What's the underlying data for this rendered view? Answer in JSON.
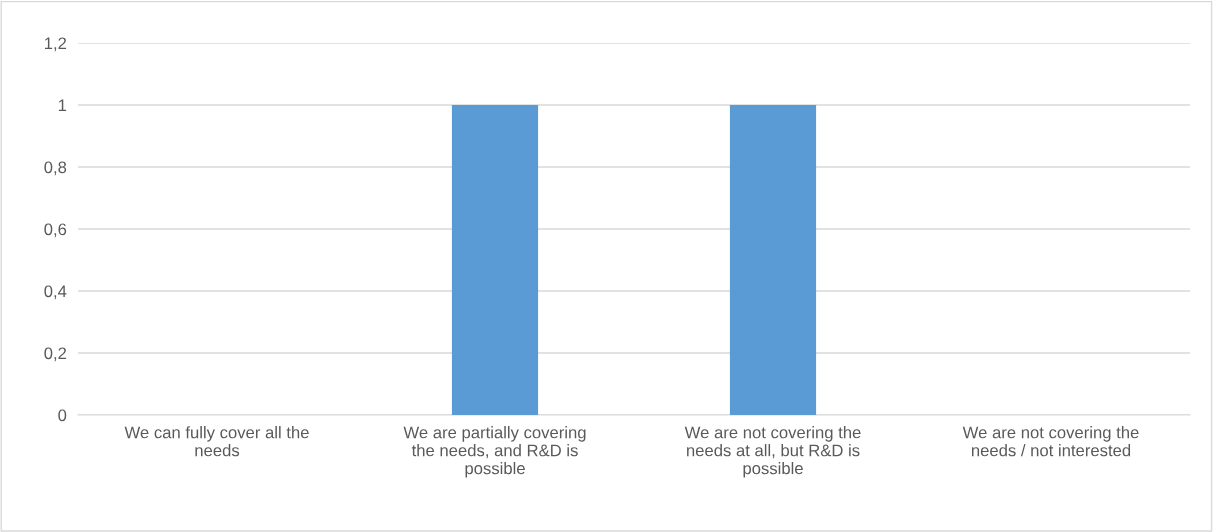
{
  "chart_data": {
    "type": "bar",
    "categories": [
      "We can fully cover all the\nneeds",
      "We are partially covering\nthe needs, and R&D is\npossible",
      "We are not covering the\nneeds at all, but R&D is\npossible",
      "We are not covering the\nneeds / not interested"
    ],
    "values": [
      0,
      1,
      1,
      0
    ],
    "color": "#5b9bd5",
    "ylim": [
      0,
      1.2
    ],
    "yticks": [
      {
        "value": 0,
        "label": "0"
      },
      {
        "value": 0.2,
        "label": "0,2"
      },
      {
        "value": 0.4,
        "label": "0,4"
      },
      {
        "value": 0.6,
        "label": "0,6"
      },
      {
        "value": 0.8,
        "label": "0,8"
      },
      {
        "value": 1,
        "label": "1"
      },
      {
        "value": 1.2,
        "label": "1,2"
      }
    ],
    "grid": "y",
    "legend": false
  }
}
